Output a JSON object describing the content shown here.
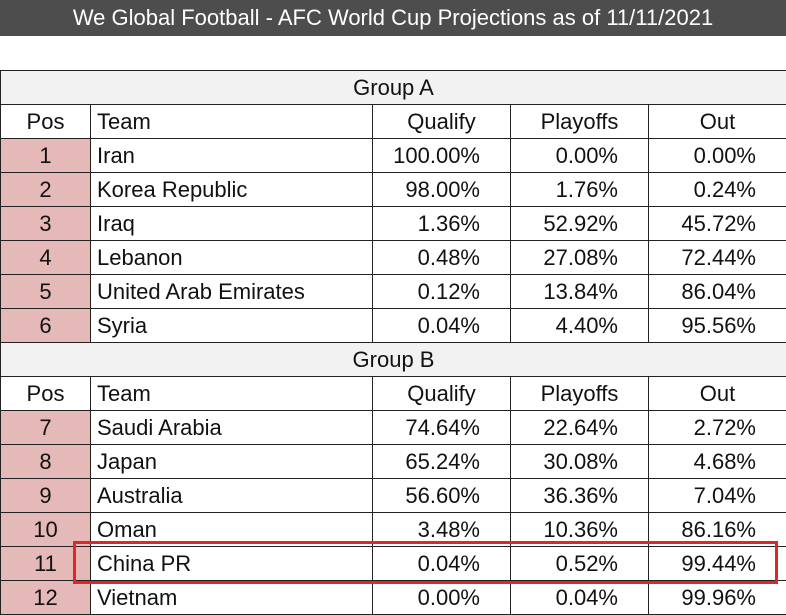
{
  "header": {
    "title": "We Global Football - AFC World Cup Projections as of 11/11/2021"
  },
  "groups": [
    {
      "name": "Group A",
      "columns": [
        "Pos",
        "Team",
        "Qualify",
        "Playoffs",
        "Out"
      ],
      "rows": [
        [
          "1",
          "Iran",
          "100.00%",
          "0.00%",
          "0.00%"
        ],
        [
          "2",
          "Korea Republic",
          "98.00%",
          "1.76%",
          "0.24%"
        ],
        [
          "3",
          "Iraq",
          "1.36%",
          "52.92%",
          "45.72%"
        ],
        [
          "4",
          "Lebanon",
          "0.48%",
          "27.08%",
          "72.44%"
        ],
        [
          "5",
          "United Arab Emirates",
          "0.12%",
          "13.84%",
          "86.04%"
        ],
        [
          "6",
          "Syria",
          "0.04%",
          "4.40%",
          "95.56%"
        ]
      ]
    },
    {
      "name": "Group B",
      "columns": [
        "Pos",
        "Team",
        "Qualify",
        "Playoffs",
        "Out"
      ],
      "rows": [
        [
          "7",
          "Saudi Arabia",
          "74.64%",
          "22.64%",
          "2.72%"
        ],
        [
          "8",
          "Japan",
          "65.24%",
          "30.08%",
          "4.68%"
        ],
        [
          "9",
          "Australia",
          "56.60%",
          "36.36%",
          "7.04%"
        ],
        [
          "10",
          "Oman",
          "3.48%",
          "10.36%",
          "86.16%"
        ],
        [
          "11",
          "China PR",
          "0.04%",
          "0.52%",
          "99.44%"
        ],
        [
          "12",
          "Vietnam",
          "0.00%",
          "0.04%",
          "99.96%"
        ]
      ]
    }
  ]
}
